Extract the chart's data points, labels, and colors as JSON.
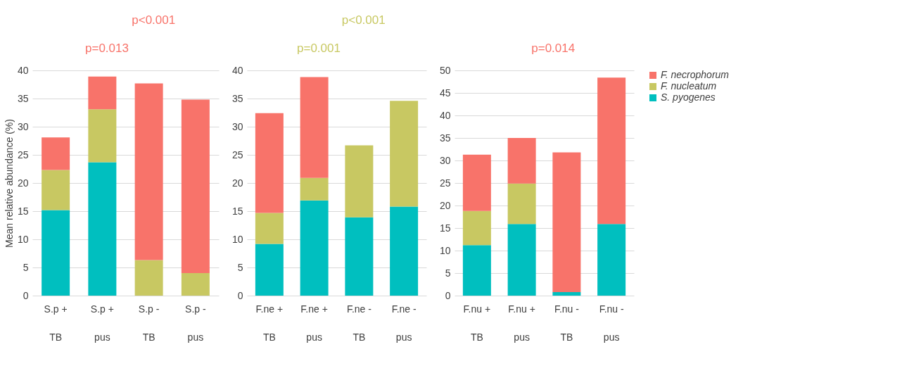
{
  "chart_data": [
    {
      "type": "bar",
      "stacked": true,
      "ylabel": "Mean relative abundance (%)",
      "categories": [
        "S.p +\nTB",
        "S.p +\npus",
        "S.p -\nTB",
        "S.p -\npus"
      ],
      "ylim": [
        0,
        40
      ],
      "yticks": [
        0,
        5,
        10,
        15,
        20,
        25,
        30,
        35,
        40
      ],
      "grid": "y",
      "legend": false,
      "annotations": [
        "p=0.013",
        "p<0.001"
      ],
      "series": [
        {
          "color": "#00bfbf",
          "values": [
            15.2,
            23.7,
            0,
            0
          ]
        },
        {
          "color": "#c8c862",
          "values": [
            7.1,
            9.4,
            6.3,
            4.0
          ]
        },
        {
          "color": "#f8736a",
          "values": [
            5.8,
            5.8,
            31.4,
            30.8
          ]
        }
      ]
    },
    {
      "type": "bar",
      "stacked": true,
      "categories": [
        "F.ne +\nTB",
        "F.ne +\npus",
        "F.ne -\nTB",
        "F.ne -\npus"
      ],
      "ylim": [
        0,
        40
      ],
      "yticks": [
        0,
        5,
        10,
        15,
        20,
        25,
        30,
        35,
        40
      ],
      "grid": "y",
      "legend": false,
      "annotations": [
        "p=0.001",
        "p<0.001"
      ],
      "series": [
        {
          "color": "#00bfbf",
          "values": [
            9.2,
            16.9,
            13.9,
            15.8
          ]
        },
        {
          "color": "#c8c862",
          "values": [
            5.5,
            4.0,
            12.8,
            18.8
          ]
        },
        {
          "color": "#f8736a",
          "values": [
            17.7,
            17.9,
            0,
            0
          ]
        }
      ]
    },
    {
      "type": "bar",
      "stacked": true,
      "categories": [
        "F.nu +\nTB",
        "F.nu +\npus",
        "F.nu -\nTB",
        "F.nu -\npus"
      ],
      "ylim": [
        0,
        50
      ],
      "yticks": [
        0,
        5,
        10,
        15,
        20,
        25,
        30,
        35,
        40,
        45,
        50
      ],
      "grid": "y",
      "legend": "right",
      "annotations": [
        "p=0.014"
      ],
      "series": [
        {
          "name": "S. pyogenes",
          "color": "#00bfbf",
          "values": [
            11.2,
            15.9,
            0.8,
            15.9
          ]
        },
        {
          "name": "F. nucleatum",
          "color": "#c8c862",
          "values": [
            7.6,
            9.0,
            0,
            0
          ]
        },
        {
          "name": "F. necrophorum",
          "color": "#f8736a",
          "values": [
            12.5,
            10.1,
            31.0,
            32.5
          ]
        }
      ]
    }
  ]
}
